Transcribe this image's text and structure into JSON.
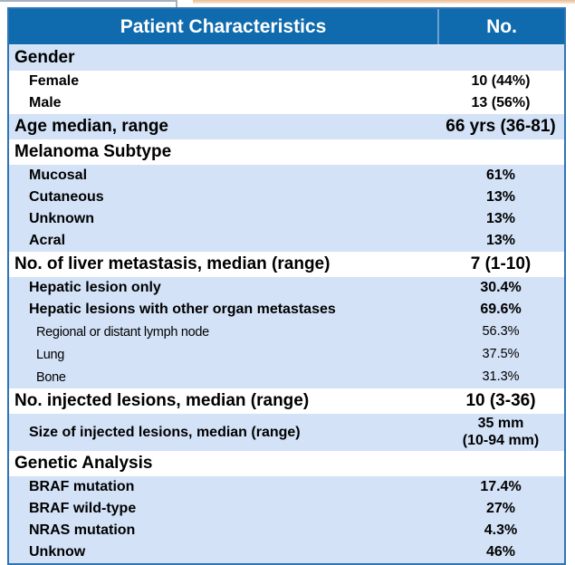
{
  "colors": {
    "header_bg": "#0f6bad",
    "header_text": "#ffffff",
    "row_alt_bg": "#d3e2f7",
    "border_color": "#2e75b6"
  },
  "table": {
    "header": {
      "characteristics": "Patient Characteristics",
      "number": "No."
    },
    "rows": [
      {
        "label": "Gender",
        "value": "",
        "level": 0,
        "shade": "blue"
      },
      {
        "label": "Female",
        "value": "10 (44%)",
        "level": 1,
        "shade": "white"
      },
      {
        "label": "Male",
        "value": "13 (56%)",
        "level": 1,
        "shade": "white"
      },
      {
        "label": "Age median, range",
        "value": "66 yrs (36-81)",
        "level": 0,
        "shade": "blue"
      },
      {
        "label": "Melanoma Subtype",
        "value": "",
        "level": 0,
        "shade": "white"
      },
      {
        "label": "Mucosal",
        "value": "61%",
        "level": 1,
        "shade": "blue"
      },
      {
        "label": "Cutaneous",
        "value": "13%",
        "level": 1,
        "shade": "blue"
      },
      {
        "label": "Unknown",
        "value": "13%",
        "level": 1,
        "shade": "blue"
      },
      {
        "label": "Acral",
        "value": "13%",
        "level": 1,
        "shade": "blue"
      },
      {
        "label": "No. of liver metastasis, median (range)",
        "value": "7 (1-10)",
        "level": 0,
        "shade": "white"
      },
      {
        "label": "Hepatic lesion only",
        "value": "30.4%",
        "level": 1,
        "shade": "blue"
      },
      {
        "label": "Hepatic lesions with other organ metastases",
        "value": "69.6%",
        "level": 1,
        "shade": "blue"
      },
      {
        "label": "Regional or distant lymph node",
        "value": "56.3%",
        "level": 2,
        "shade": "blue"
      },
      {
        "label": "Lung",
        "value": "37.5%",
        "level": 2,
        "shade": "blue"
      },
      {
        "label": "Bone",
        "value": "31.3%",
        "level": 2,
        "shade": "blue"
      },
      {
        "label": "No. injected lesions, median (range)",
        "value": "10 (3-36)",
        "level": 0,
        "shade": "white"
      },
      {
        "label": "Size of injected lesions, median (range)",
        "value": "35 mm",
        "value2": "(10-94 mm)",
        "level": 1,
        "shade": "blue"
      },
      {
        "label": "Genetic Analysis",
        "value": "",
        "level": 0,
        "shade": "white"
      },
      {
        "label": "BRAF mutation",
        "value": "17.4%",
        "level": 1,
        "shade": "blue"
      },
      {
        "label": "BRAF wild-type",
        "value": "27%",
        "level": 1,
        "shade": "blue"
      },
      {
        "label": "NRAS mutation",
        "value": "4.3%",
        "level": 1,
        "shade": "blue"
      },
      {
        "label": "Unknow",
        "value": "46%",
        "level": 1,
        "shade": "blue"
      }
    ]
  }
}
